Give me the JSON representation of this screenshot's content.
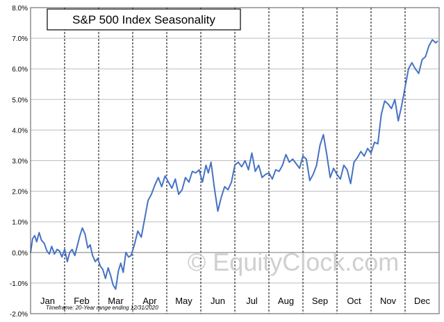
{
  "chart_data": {
    "type": "line",
    "title": "S&P 500 Index Seasonality",
    "xlabel": "",
    "ylabel": "",
    "ylim": [
      -2.0,
      8.0
    ],
    "yticks": [
      -2.0,
      -1.0,
      0.0,
      1.0,
      2.0,
      3.0,
      4.0,
      5.0,
      6.0,
      7.0,
      8.0
    ],
    "ytick_labels": [
      "-2.0%",
      "-1.0%",
      "0.0%",
      "1.0%",
      "2.0%",
      "3.0%",
      "4.0%",
      "5.0%",
      "6.0%",
      "7.0%",
      "8.0%"
    ],
    "categories": [
      "Jan",
      "Feb",
      "Mar",
      "Apr",
      "May",
      "Jun",
      "Jul",
      "Aug",
      "Sep",
      "Oct",
      "Nov",
      "Dec"
    ],
    "grid": true,
    "series": [
      {
        "name": "S&P 500 Index",
        "color": "#4472c4",
        "x": [
          0.0,
          0.06,
          0.12,
          0.18,
          0.25,
          0.32,
          0.4,
          0.48,
          0.55,
          0.62,
          0.7,
          0.78,
          0.85,
          0.92,
          1.0,
          1.08,
          1.15,
          1.22,
          1.3,
          1.38,
          1.45,
          1.52,
          1.6,
          1.68,
          1.75,
          1.82,
          1.9,
          1.97,
          2.05,
          2.12,
          2.2,
          2.28,
          2.35,
          2.42,
          2.5,
          2.58,
          2.65,
          2.72,
          2.8,
          2.88,
          2.95,
          3.05,
          3.15,
          3.25,
          3.35,
          3.45,
          3.55,
          3.65,
          3.75,
          3.85,
          3.95,
          4.05,
          4.15,
          4.25,
          4.35,
          4.45,
          4.55,
          4.65,
          4.75,
          4.85,
          4.95,
          5.05,
          5.15,
          5.22,
          5.3,
          5.4,
          5.5,
          5.6,
          5.7,
          5.8,
          5.9,
          6.0,
          6.1,
          6.2,
          6.3,
          6.4,
          6.5,
          6.6,
          6.7,
          6.8,
          6.9,
          7.0,
          7.1,
          7.2,
          7.3,
          7.4,
          7.5,
          7.6,
          7.7,
          7.8,
          7.9,
          8.0,
          8.1,
          8.2,
          8.3,
          8.4,
          8.5,
          8.6,
          8.7,
          8.8,
          8.9,
          9.0,
          9.1,
          9.2,
          9.3,
          9.4,
          9.5,
          9.6,
          9.7,
          9.8,
          9.9,
          10.0,
          10.1,
          10.2,
          10.3,
          10.4,
          10.5,
          10.6,
          10.7,
          10.8,
          10.9,
          11.0,
          11.1,
          11.2,
          11.3,
          11.4,
          11.5,
          11.6,
          11.7,
          11.8,
          11.9,
          11.95
        ],
        "values": [
          0.0,
          0.45,
          0.55,
          0.35,
          0.65,
          0.4,
          0.3,
          0.05,
          -0.05,
          0.2,
          -0.05,
          0.1,
          0.05,
          -0.15,
          0.1,
          -0.3,
          0.0,
          0.1,
          -0.1,
          0.25,
          0.55,
          0.8,
          0.6,
          0.15,
          0.25,
          -0.1,
          -0.3,
          -0.2,
          -0.45,
          -0.55,
          -0.85,
          -0.5,
          -0.75,
          -1.05,
          -1.2,
          -0.6,
          -0.35,
          -0.65,
          0.0,
          -0.15,
          -0.1,
          0.25,
          0.7,
          0.5,
          1.1,
          1.7,
          1.9,
          2.2,
          2.45,
          2.15,
          2.5,
          2.3,
          2.1,
          2.4,
          1.9,
          2.05,
          2.45,
          2.3,
          2.65,
          2.6,
          2.7,
          2.3,
          2.85,
          2.6,
          2.95,
          2.1,
          1.35,
          1.8,
          2.15,
          2.05,
          2.3,
          2.85,
          2.95,
          2.8,
          3.0,
          2.7,
          3.25,
          2.65,
          2.85,
          2.45,
          2.55,
          2.6,
          2.4,
          2.7,
          2.65,
          2.85,
          3.2,
          2.95,
          3.05,
          2.9,
          2.75,
          3.15,
          3.05,
          2.35,
          2.55,
          2.85,
          3.5,
          3.85,
          3.2,
          2.45,
          2.75,
          2.55,
          2.4,
          2.85,
          2.7,
          2.25,
          2.95,
          3.1,
          3.3,
          3.15,
          3.4,
          3.25,
          3.6,
          3.55,
          4.5,
          4.95,
          4.85,
          4.7,
          5.0,
          4.3,
          4.8,
          5.4,
          6.0,
          6.2,
          6.0,
          5.85,
          6.3,
          6.4,
          6.75,
          6.95,
          6.85,
          6.9
        ]
      }
    ],
    "footnote": "Timeframe: 20-Year range ending 12/31/2020",
    "watermark": "© EquityClock.com"
  }
}
